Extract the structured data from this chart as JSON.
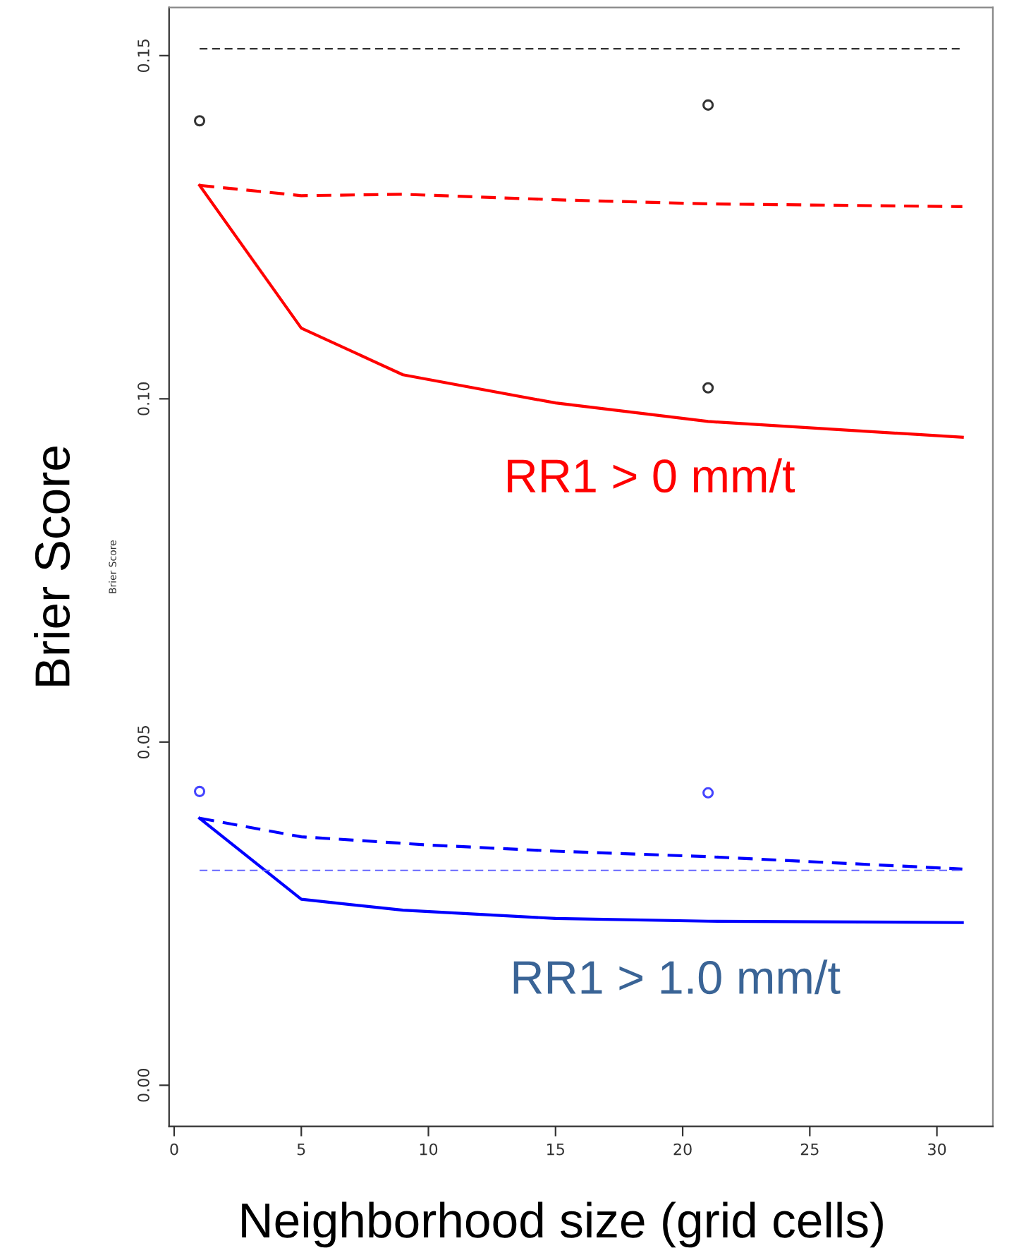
{
  "chart_data": {
    "type": "line",
    "xlabel": "Neighborhood size (grid cells)",
    "ylabel": "Brier Score",
    "xlim": [
      -0.2,
      32.2
    ],
    "xticks": [
      0,
      5,
      10,
      15,
      20,
      25,
      30
    ],
    "ylim": [
      -0.006,
      0.157
    ],
    "yticks": [
      {
        "value": 0,
        "label": "0.00"
      },
      {
        "value": 0.05,
        "label": "0.05"
      },
      {
        "value": 0.1,
        "label": "0.10"
      },
      {
        "value": 0.15,
        "label": "0.15"
      }
    ],
    "grid": false,
    "legend": false,
    "series": [
      {
        "color": "#ff0000",
        "line_style": "solid",
        "x": [
          1,
          5,
          9,
          15,
          21,
          31
        ],
        "values": [
          0.1311,
          0.1103,
          0.1035,
          0.0994,
          0.0967,
          0.0944
        ]
      },
      {
        "color": "#ff0000",
        "line_style": "dashed",
        "x": [
          1,
          5,
          9,
          15,
          21,
          31
        ],
        "values": [
          0.1311,
          0.1296,
          0.1298,
          0.129,
          0.1284,
          0.128
        ]
      },
      {
        "color": "#0000ff",
        "line_style": "solid",
        "x": [
          1,
          5,
          9,
          15,
          21,
          31
        ],
        "values": [
          0.0389,
          0.0271,
          0.0255,
          0.0243,
          0.0239,
          0.0237
        ]
      },
      {
        "color": "#0000ff",
        "line_style": "dashed",
        "x": [
          1,
          5,
          10,
          15,
          21,
          31
        ],
        "values": [
          0.0389,
          0.0362,
          0.035,
          0.0341,
          0.0333,
          0.0315
        ]
      },
      {
        "type": "scatter",
        "color": "#333333",
        "marker": "circle",
        "x": [
          1,
          21,
          21
        ],
        "values": [
          0.1405,
          0.1428,
          0.1016
        ]
      },
      {
        "type": "scatter",
        "color": "#4444ff",
        "marker": "circle",
        "x": [
          1,
          21
        ],
        "values": [
          0.0428,
          0.0426
        ]
      }
    ],
    "ref_lines": [
      {
        "axis": "y",
        "value": 0.151,
        "color": "#333333",
        "line_style": "dashed"
      },
      {
        "axis": "y",
        "value": 0.0313,
        "color": "#6666ff",
        "line_style": "dashed"
      }
    ],
    "annotations": [
      "RR1 > 0 mm/t",
      "RR1 > 1.0 mm/t",
      "Brier Score"
    ]
  }
}
